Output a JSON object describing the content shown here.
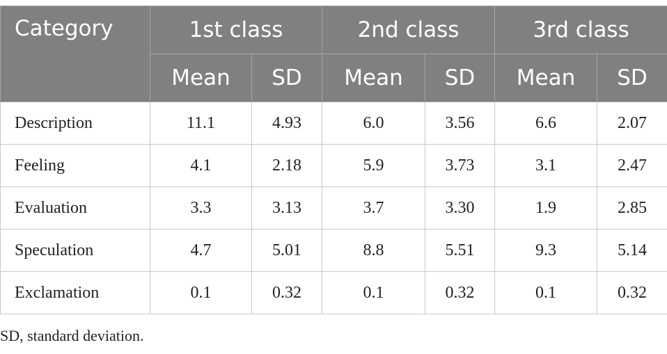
{
  "table": {
    "header": {
      "category": "Category",
      "groups": [
        "1st class",
        "2nd class",
        "3rd class"
      ],
      "subheaders": [
        "Mean",
        "SD",
        "Mean",
        "SD",
        "Mean",
        "SD"
      ]
    },
    "rows": [
      [
        "Description",
        "11.1",
        "4.93",
        "6.0",
        "3.56",
        "6.6",
        "2.07"
      ],
      [
        "Feeling",
        "4.1",
        "2.18",
        "5.9",
        "3.73",
        "3.1",
        "2.47"
      ],
      [
        "Evaluation",
        "3.3",
        "3.13",
        "3.7",
        "3.30",
        "1.9",
        "2.85"
      ],
      [
        "Speculation",
        "4.7",
        "5.01",
        "8.8",
        "5.51",
        "9.3",
        "5.14"
      ],
      [
        "Exclamation",
        "0.1",
        "0.32",
        "0.1",
        "0.32",
        "0.1",
        "0.32"
      ]
    ]
  },
  "footnote": "SD, standard deviation."
}
